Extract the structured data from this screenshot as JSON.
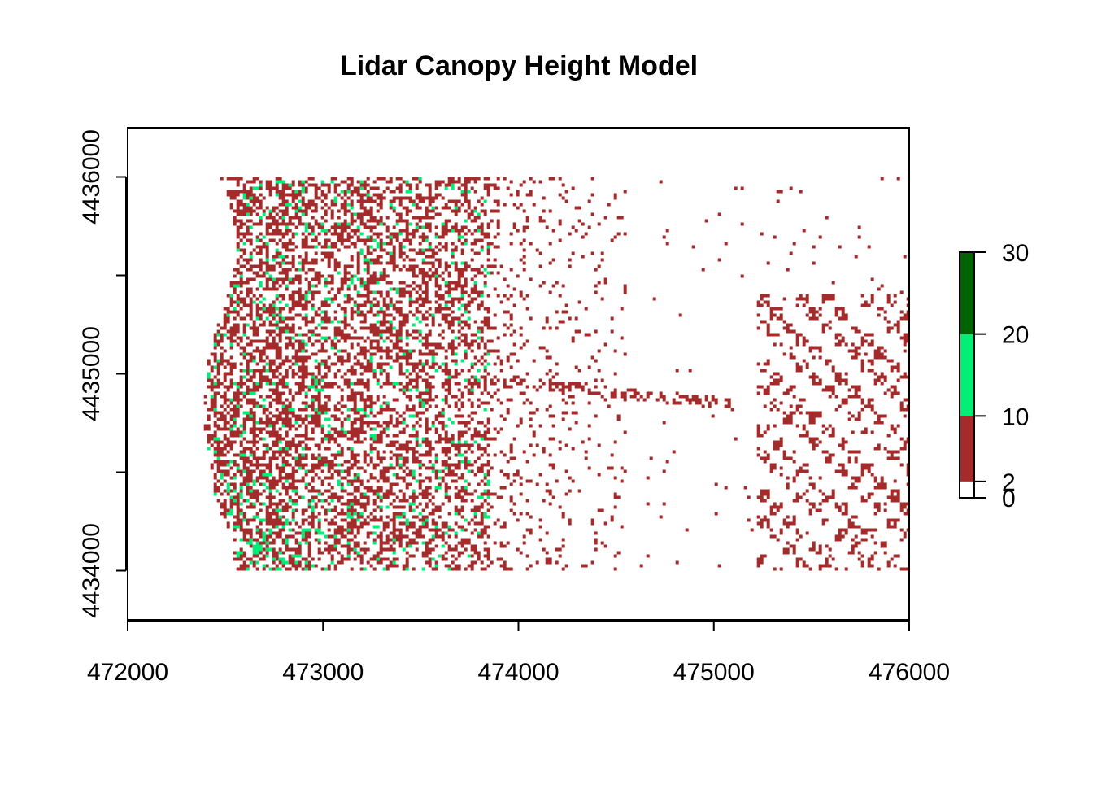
{
  "chart_data": {
    "type": "heatmap",
    "title": "Lidar Canopy Height Model",
    "xlabel": "",
    "ylabel": "",
    "xlim": [
      472000,
      476000
    ],
    "ylim": [
      4433750,
      4436250
    ],
    "x_ticks": [
      472000,
      473000,
      474000,
      475000,
      476000
    ],
    "x_tick_labels": [
      "472000",
      "473000",
      "474000",
      "475000",
      "476000"
    ],
    "y_ticks": [
      4434000,
      4434500,
      4435000,
      4435500,
      4436000
    ],
    "y_tick_labels": [
      "4434000",
      "",
      "4435000",
      "",
      "4436000"
    ],
    "raster_extent": {
      "xmin": 472340,
      "xmax": 476000,
      "ymin": 4434000,
      "ymax": 4436000
    },
    "legend": {
      "placement": "right",
      "breaks": [
        0,
        2,
        10,
        20,
        30
      ],
      "break_labels": [
        "0",
        "2",
        "10",
        "20",
        "30"
      ],
      "classes": [
        {
          "from": 0,
          "to": 2,
          "color": "#ffffff"
        },
        {
          "from": 2,
          "to": 10,
          "color": "#a52a2a"
        },
        {
          "from": 10,
          "to": 20,
          "color": "#00ee76"
        },
        {
          "from": 20,
          "to": 30,
          "color": "#006400"
        }
      ]
    }
  }
}
